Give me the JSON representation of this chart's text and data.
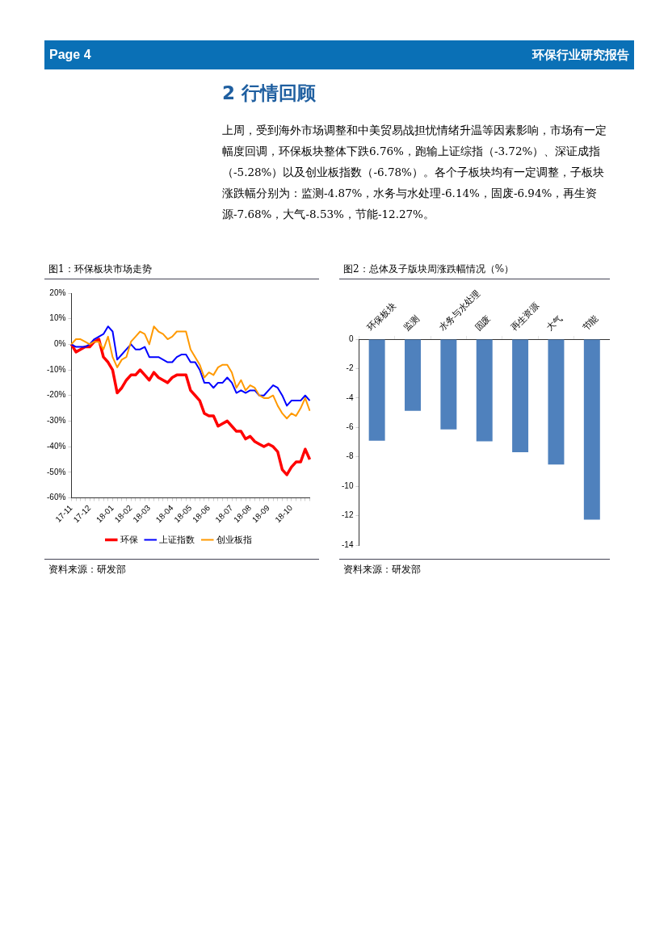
{
  "chart_data": [
    {
      "type": "other",
      "title": "2  行情回顾",
      "annotations": [
        "Page 4",
        "环保行业研究报告",
        "上周，受到海外市场调整和中美贸易战担忧情绪升温等因素影响，市场有一定幅度回调，环保板块整体下跌6.76%，跑输上证综指（-3.72%）、深证成指（-5.28%）以及创业板指数（-6.78%）。各个子板块均有一定调整，子板块涨跌幅分别为：监测-4.87%，水务与水处理-6.14%，固废-6.94%，再生资源-7.68%，大气-8.53%，节能-12.27%。"
      ]
    },
    {
      "type": "line",
      "title": "图1：环保板块市场走势",
      "annotations": [
        "资料来源：研发部"
      ],
      "legend": "bottom",
      "marker": "none",
      "grid": false,
      "categories": [
        "17-11",
        null,
        null,
        null,
        "17-12",
        null,
        null,
        null,
        null,
        "18-01",
        null,
        null,
        null,
        "18-02",
        null,
        null,
        null,
        "18-03",
        null,
        null,
        null,
        null,
        "18-04",
        null,
        null,
        null,
        "18-05",
        null,
        null,
        null,
        "18-06",
        null,
        null,
        null,
        null,
        "18-07",
        null,
        null,
        null,
        "18-08",
        null,
        null,
        null,
        "18-09",
        null,
        null,
        null,
        null,
        "18-10",
        null,
        null,
        null,
        null
      ],
      "ylim": [
        -60,
        20
      ],
      "yticks": [
        {
          "value": -60,
          "label": "-60%"
        },
        {
          "value": -50,
          "label": "-50%"
        },
        {
          "value": -40,
          "label": "-40%"
        },
        {
          "value": -30,
          "label": "-30%"
        },
        {
          "value": -20,
          "label": "-20%"
        },
        {
          "value": -10,
          "label": "-10%"
        },
        {
          "value": 0,
          "label": "0%"
        },
        {
          "value": 10,
          "label": "10%"
        },
        {
          "value": 20,
          "label": "20%"
        }
      ],
      "series": [
        {
          "name": "环保",
          "color": "#ff0000",
          "values": [
            0,
            -3,
            -2,
            -1,
            -1,
            1,
            2,
            -5,
            -7,
            -10,
            -19,
            -17,
            -14,
            -12,
            -12,
            -10,
            -12,
            -14,
            -11,
            -13,
            -14,
            -15,
            -13,
            -12,
            -12,
            -12,
            -18,
            -20,
            -22,
            -27,
            -28,
            -28,
            -32,
            -31,
            -30,
            -32,
            -34,
            -34,
            -37,
            -36,
            -38,
            -39,
            -40,
            -39,
            -40,
            -42,
            -49,
            -51,
            -48,
            -46,
            -46,
            -41,
            -45
          ]
        },
        {
          "name": "上证指数",
          "color": "#0000ff",
          "values": [
            0,
            -1,
            -1,
            -1,
            0,
            2,
            3,
            4,
            7,
            5,
            -6,
            -4,
            -2,
            0,
            -2,
            -2,
            -1,
            -5,
            -5,
            -5,
            -6,
            -7,
            -7,
            -5,
            -4,
            -4,
            -7,
            -7,
            -10,
            -15,
            -15,
            -17,
            -15,
            -15,
            -13,
            -15,
            -19,
            -18,
            -19,
            -18,
            -18,
            -20,
            -20,
            -18,
            -16,
            -17,
            -20,
            -24,
            -22,
            -22,
            -22,
            -20,
            -22
          ]
        },
        {
          "name": "创业板指",
          "color": "#ff9900",
          "values": [
            0,
            2,
            2,
            1,
            0,
            1,
            1,
            -2,
            3,
            -5,
            -9,
            -6,
            -5,
            1,
            3,
            5,
            4,
            0,
            7,
            5,
            4,
            2,
            3,
            5,
            5,
            5,
            -2,
            -5,
            -8,
            -13,
            -11,
            -12,
            -9,
            -8,
            -8,
            -11,
            -17,
            -14,
            -18,
            -16,
            -17,
            -20,
            -21,
            -21,
            -20,
            -24,
            -27,
            -29,
            -27,
            -28,
            -25,
            -21,
            -26
          ]
        }
      ]
    },
    {
      "type": "bar",
      "title": "图2：总体及子版块周涨跌幅情况（%）",
      "annotations": [
        "资料来源：研发部"
      ],
      "grid": false,
      "categories": [
        "环保板块",
        "监测",
        "水务与水处理",
        "固废",
        "再生资源",
        "大气",
        "节能"
      ],
      "values": [
        -6.9,
        -4.87,
        -6.14,
        -6.94,
        -7.68,
        -8.53,
        -12.27
      ],
      "color": "#4f81bd",
      "ylim": [
        -14,
        0
      ],
      "yticks": [
        -14,
        -12,
        -10,
        -8,
        -6,
        -4,
        -2,
        0
      ]
    }
  ]
}
